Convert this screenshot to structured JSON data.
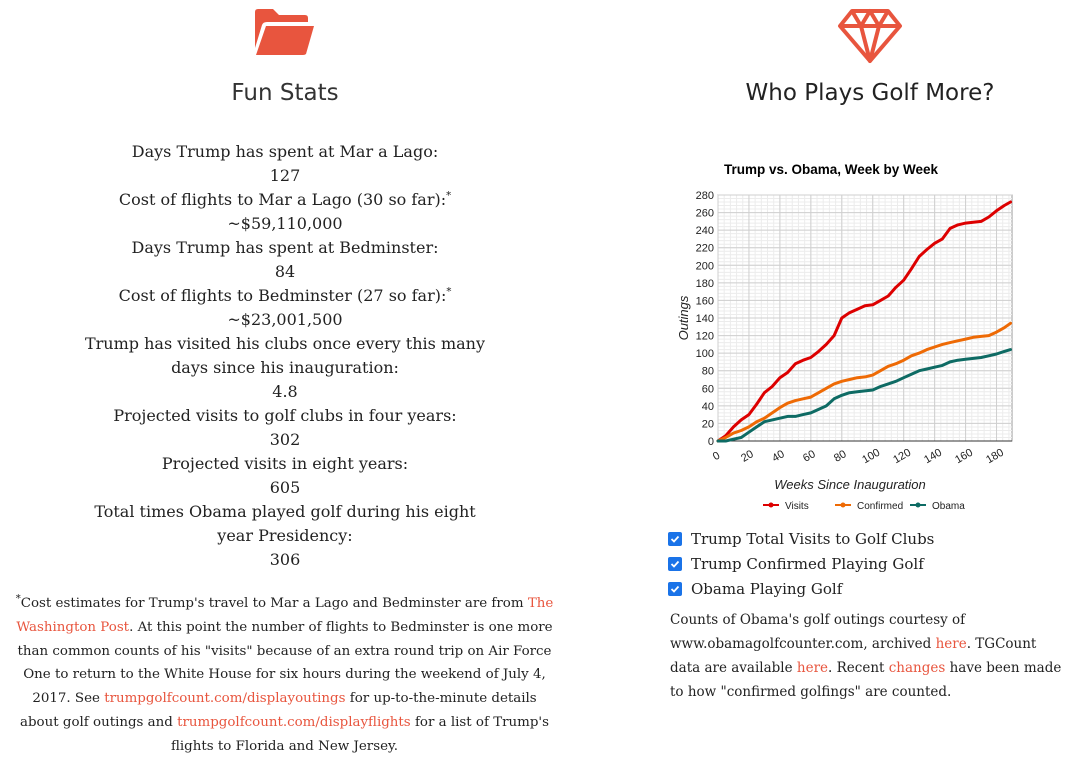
{
  "left": {
    "icon": "folder-icon",
    "title": "Fun Stats",
    "stats": [
      {
        "label": "Days Trump has spent at Mar a Lago:",
        "value": "127"
      },
      {
        "label": "Cost of flights to Mar a Lago (30 so far):",
        "label_sup": "*",
        "value": "~$59,110,000"
      },
      {
        "label": "Days Trump has spent at Bedminster:",
        "value": "84"
      },
      {
        "label": "Cost of flights to Bedminster (27 so far):",
        "label_sup": "*",
        "value": "~$23,001,500"
      },
      {
        "label": "Trump has visited his clubs once every this many days since his inauguration:",
        "value": "4.8"
      },
      {
        "label": "Projected visits to golf clubs in four years:",
        "value": "302"
      },
      {
        "label": "Projected visits in eight years:",
        "value": "605"
      },
      {
        "label": "Total times Obama played golf during his eight year Presidency:",
        "value": "306"
      }
    ],
    "footnote": {
      "star": "*",
      "text1": "Cost estimates for Trump's travel to Mar a Lago and Bedminster are from ",
      "link1": "The Washington Post",
      "text2": ". At this point the number of flights to Bedminster is one more than common counts of his \"visits\" because of an extra round trip on Air Force One to return to the White House for six hours during the weekend of July 4, 2017. See ",
      "link2": "trumpgolfcount.com/displayoutings",
      "text3": " for up-to-the-minute details about golf outings and ",
      "link3": "trumpgolfcount.com/displayflights",
      "text4": " for a list of Trump's flights to Florida and New Jersey."
    }
  },
  "right": {
    "icon": "diamond-icon",
    "title": "Who Plays Golf More?",
    "checkboxes": [
      {
        "label": "Trump Total Visits to Golf Clubs",
        "checked": true
      },
      {
        "label": "Trump Confirmed Playing Golf",
        "checked": true
      },
      {
        "label": "Obama Playing Golf",
        "checked": true
      }
    ],
    "note": {
      "text1": "Counts of Obama's golf outings courtesy of www.obamagolfcounter.com, archived ",
      "link1": "here",
      "text2": ". TGCount data are available ",
      "link2": "here",
      "text3": ". Recent ",
      "link3": "changes",
      "text4": " have been made to how \"confirmed golfings\" are counted."
    }
  },
  "colors": {
    "accent": "#e8553e",
    "visits": "#dd0000",
    "confirmed": "#ee6a05",
    "obama": "#0e6b64",
    "checkbox": "#1a73e8"
  },
  "chart_data": {
    "type": "line",
    "title": "Trump vs. Obama, Week by Week",
    "xlabel": "Weeks Since Inauguration",
    "ylabel": "Outings",
    "xlim": [
      0,
      190
    ],
    "ylim": [
      0,
      280
    ],
    "xticks": [
      0,
      20,
      40,
      60,
      80,
      100,
      120,
      140,
      160,
      180
    ],
    "yticks": [
      0,
      20,
      40,
      60,
      80,
      100,
      120,
      140,
      160,
      180,
      200,
      220,
      240,
      260,
      280
    ],
    "grid": true,
    "legend_position": "bottom",
    "series": [
      {
        "name": "Visits",
        "color": "#dd0000",
        "x": [
          0,
          5,
          10,
          15,
          20,
          25,
          30,
          35,
          40,
          45,
          50,
          55,
          60,
          65,
          70,
          75,
          80,
          85,
          90,
          95,
          100,
          105,
          110,
          115,
          120,
          125,
          130,
          135,
          140,
          145,
          150,
          155,
          160,
          165,
          170,
          175,
          180,
          185,
          189
        ],
        "y": [
          0,
          6,
          16,
          24,
          30,
          42,
          55,
          62,
          72,
          78,
          88,
          92,
          95,
          102,
          110,
          120,
          140,
          146,
          150,
          154,
          155,
          160,
          165,
          175,
          183,
          196,
          210,
          218,
          225,
          230,
          242,
          246,
          248,
          249,
          250,
          255,
          262,
          268,
          272
        ]
      },
      {
        "name": "Confirmed",
        "color": "#ee6a05",
        "x": [
          0,
          5,
          10,
          15,
          20,
          25,
          30,
          35,
          40,
          45,
          50,
          55,
          60,
          65,
          70,
          75,
          80,
          85,
          90,
          95,
          100,
          105,
          110,
          115,
          120,
          125,
          130,
          135,
          140,
          145,
          150,
          155,
          160,
          165,
          170,
          175,
          180,
          185,
          189
        ],
        "y": [
          0,
          4,
          9,
          12,
          16,
          22,
          26,
          32,
          38,
          43,
          46,
          48,
          50,
          55,
          60,
          65,
          68,
          70,
          72,
          73,
          75,
          80,
          85,
          88,
          92,
          97,
          100,
          104,
          107,
          110,
          112,
          114,
          116,
          118,
          119,
          120,
          124,
          129,
          134
        ]
      },
      {
        "name": "Obama",
        "color": "#0e6b64",
        "x": [
          0,
          5,
          10,
          15,
          20,
          25,
          30,
          35,
          40,
          45,
          50,
          55,
          60,
          65,
          70,
          75,
          80,
          85,
          90,
          95,
          100,
          105,
          110,
          115,
          120,
          125,
          130,
          135,
          140,
          145,
          150,
          155,
          160,
          165,
          170,
          175,
          180,
          185,
          189
        ],
        "y": [
          0,
          0,
          2,
          4,
          10,
          16,
          22,
          24,
          26,
          28,
          28,
          30,
          32,
          36,
          40,
          48,
          52,
          55,
          56,
          57,
          58,
          62,
          65,
          68,
          72,
          76,
          80,
          82,
          84,
          86,
          90,
          92,
          93,
          94,
          95,
          97,
          99,
          102,
          104
        ]
      }
    ]
  }
}
